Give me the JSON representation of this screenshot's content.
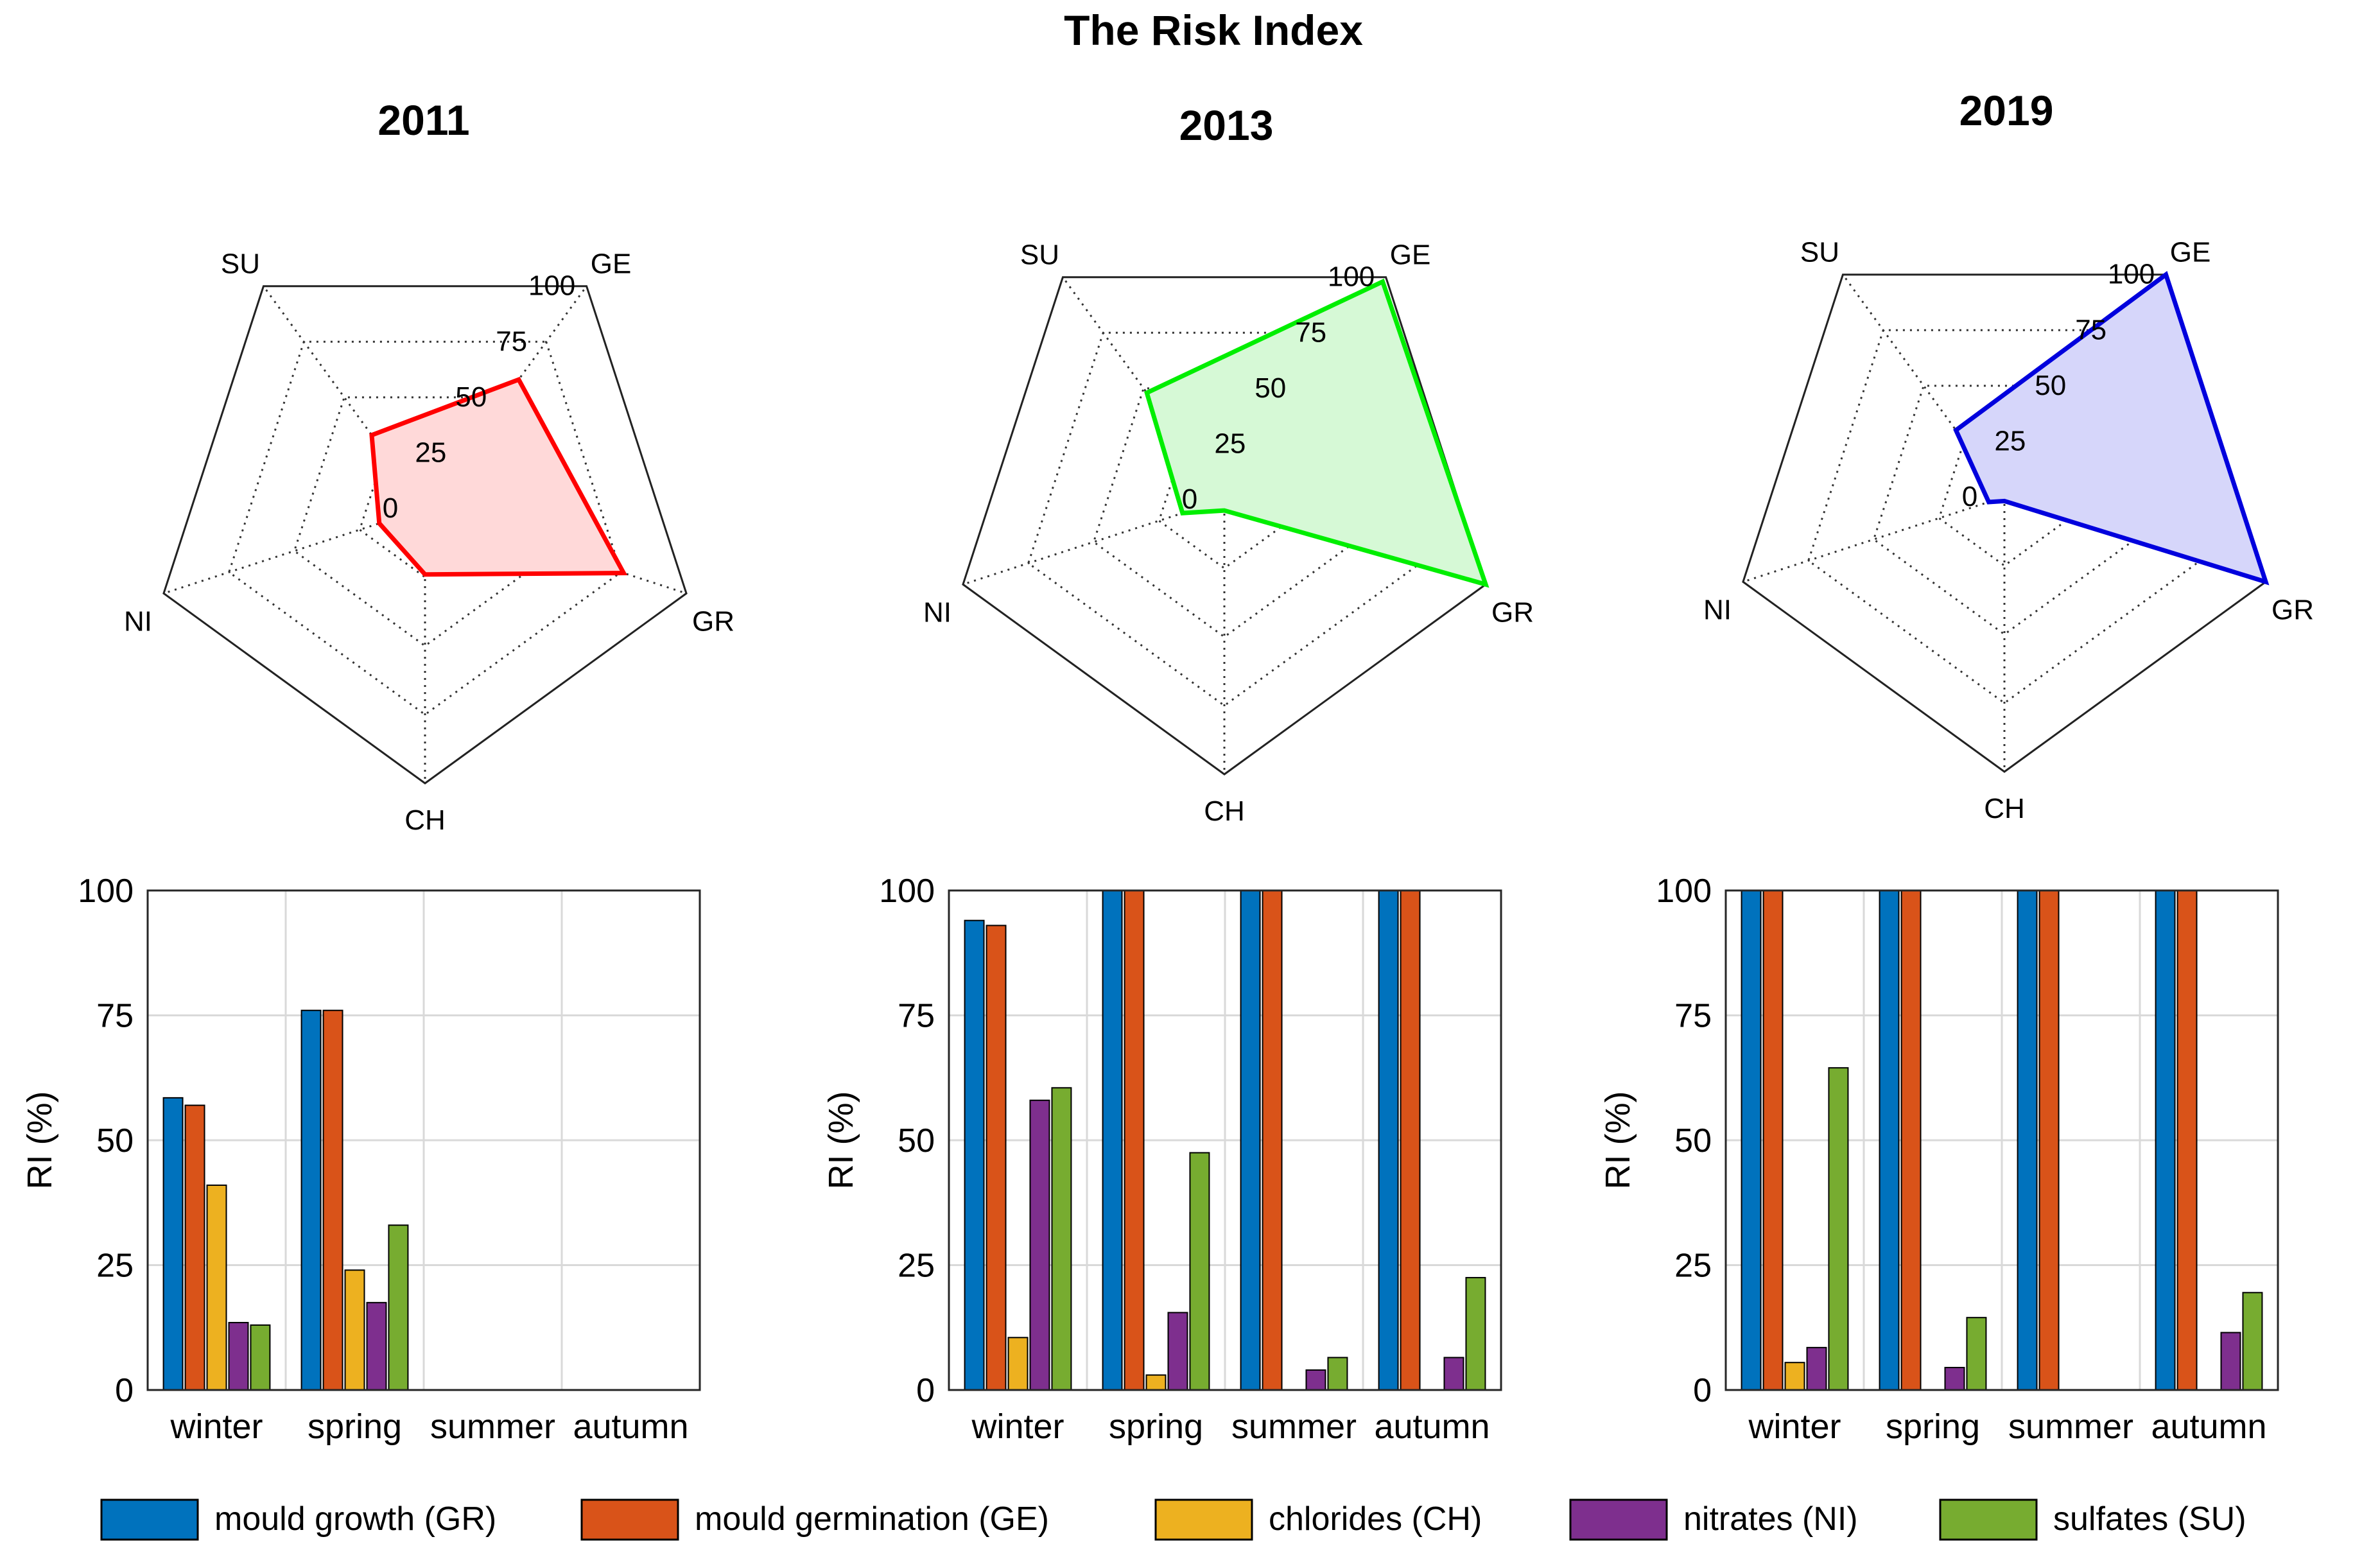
{
  "figure": {
    "title": "The Risk Index",
    "legend": [
      {
        "label": "mould growth (GR)",
        "color": "#0072BD"
      },
      {
        "label": "mould germination (GE)",
        "color": "#D95319"
      },
      {
        "label": "chlorides (CH)",
        "color": "#EDB120"
      },
      {
        "label": "nitrates (NI)",
        "color": "#7E2F8E"
      },
      {
        "label": "sulfates (SU)",
        "color": "#77AC30"
      }
    ]
  },
  "chart_data": [
    {
      "type": "radar",
      "title": "2011",
      "axes": [
        "GE",
        "GR",
        "CH",
        "NI",
        "SU"
      ],
      "rings": [
        "0",
        "25",
        "50",
        "75",
        "100"
      ],
      "rmin": 0,
      "rmax": 100,
      "values": [
        58,
        76,
        24,
        17.5,
        33
      ],
      "color": "#ff0000",
      "fill": "#ffd9d9"
    },
    {
      "type": "bar",
      "categories": [
        "winter",
        "spring",
        "summer",
        "autumn"
      ],
      "series": [
        {
          "name": "mould growth (GR)",
          "values": [
            58.5,
            76,
            0,
            0
          ]
        },
        {
          "name": "mould germination (GE)",
          "values": [
            57,
            76,
            0,
            0
          ]
        },
        {
          "name": "chlorides (CH)",
          "values": [
            41,
            24,
            0,
            0
          ]
        },
        {
          "name": "nitrates (NI)",
          "values": [
            13.5,
            17.5,
            0,
            0
          ]
        },
        {
          "name": "sulfates (SU)",
          "values": [
            13,
            33,
            0,
            0
          ]
        }
      ],
      "ylabel": "RI (%)",
      "yticks": [
        "0",
        "25",
        "50",
        "75",
        "100"
      ],
      "ylim": [
        0,
        100
      ]
    },
    {
      "type": "radar",
      "title": "2013",
      "axes": [
        "GE",
        "GR",
        "CH",
        "NI",
        "SU"
      ],
      "rings": [
        "0",
        "25",
        "50",
        "75",
        "100"
      ],
      "rmin": 0,
      "rmax": 100,
      "values": [
        98,
        100,
        4,
        16,
        48
      ],
      "color": "#00ee00",
      "fill": "#d6f9d6"
    },
    {
      "type": "bar",
      "categories": [
        "winter",
        "spring",
        "summer",
        "autumn"
      ],
      "series": [
        {
          "name": "mould growth (GR)",
          "values": [
            94,
            100,
            100,
            100
          ]
        },
        {
          "name": "mould germination (GE)",
          "values": [
            93,
            100,
            100,
            100
          ]
        },
        {
          "name": "chlorides (CH)",
          "values": [
            10.5,
            3,
            0,
            0
          ]
        },
        {
          "name": "nitrates (NI)",
          "values": [
            58,
            15.5,
            4,
            6.5
          ]
        },
        {
          "name": "sulfates (SU)",
          "values": [
            60.5,
            47.5,
            6.5,
            22.5
          ]
        }
      ],
      "ylabel": "RI (%)",
      "yticks": [
        "0",
        "25",
        "50",
        "75",
        "100"
      ],
      "ylim": [
        0,
        100
      ]
    },
    {
      "type": "radar",
      "title": "2019",
      "axes": [
        "GE",
        "GR",
        "CH",
        "NI",
        "SU"
      ],
      "rings": [
        "0",
        "25",
        "50",
        "75",
        "100"
      ],
      "rmin": 0,
      "rmax": 100,
      "values": [
        100,
        100,
        1.5,
        6,
        30
      ],
      "color": "#0000dd",
      "fill": "#d6d6fa"
    },
    {
      "type": "bar",
      "categories": [
        "winter",
        "spring",
        "summer",
        "autumn"
      ],
      "series": [
        {
          "name": "mould growth (GR)",
          "values": [
            100,
            100,
            100,
            100
          ]
        },
        {
          "name": "mould germination (GE)",
          "values": [
            100,
            100,
            100,
            100
          ]
        },
        {
          "name": "chlorides (CH)",
          "values": [
            5.5,
            0,
            0,
            0
          ]
        },
        {
          "name": "nitrates (NI)",
          "values": [
            8.5,
            4.5,
            0,
            11.5
          ]
        },
        {
          "name": "sulfates (SU)",
          "values": [
            64.5,
            14.5,
            0,
            19.5
          ]
        }
      ],
      "ylabel": "RI (%)",
      "yticks": [
        "0",
        "25",
        "50",
        "75",
        "100"
      ],
      "ylim": [
        0,
        100
      ]
    }
  ]
}
